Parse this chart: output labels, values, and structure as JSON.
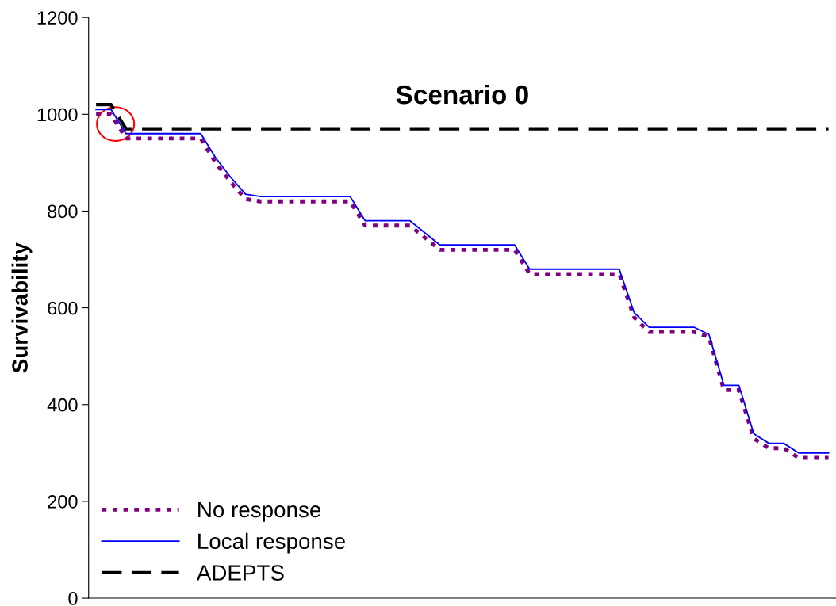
{
  "chart_data": {
    "type": "line",
    "title": "Scenario 0",
    "ylabel": "Survivability",
    "categories": [
      null,
      null,
      null,
      null,
      null,
      null,
      null,
      null,
      null,
      null,
      null,
      null,
      null,
      null,
      null,
      null,
      null,
      null,
      null,
      null,
      null,
      null,
      null,
      null,
      null,
      null,
      null,
      null,
      null,
      null,
      null,
      null,
      null,
      null,
      null,
      null,
      null,
      null,
      null,
      null,
      null,
      null,
      null,
      null,
      null,
      null,
      null,
      null,
      null,
      null
    ],
    "series": [
      {
        "name": "No response",
        "color": "#800080",
        "line_style": "dotted",
        "values": [
          1000,
          1000,
          950,
          950,
          950,
          950,
          950,
          950,
          900,
          860,
          825,
          820,
          820,
          820,
          820,
          820,
          820,
          820,
          770,
          770,
          770,
          770,
          745,
          720,
          720,
          720,
          720,
          720,
          720,
          670,
          670,
          670,
          670,
          670,
          670,
          670,
          580,
          550,
          550,
          550,
          550,
          540,
          430,
          430,
          330,
          310,
          310,
          290,
          290,
          290
        ]
      },
      {
        "name": "Local response",
        "color": "#0000ff",
        "line_style": "solid",
        "values": [
          1010,
          1010,
          960,
          960,
          960,
          960,
          960,
          960,
          910,
          870,
          835,
          830,
          830,
          830,
          830,
          830,
          830,
          830,
          780,
          780,
          780,
          780,
          755,
          730,
          730,
          730,
          730,
          730,
          730,
          680,
          680,
          680,
          680,
          680,
          680,
          680,
          590,
          560,
          560,
          560,
          560,
          545,
          440,
          440,
          340,
          320,
          320,
          300,
          300,
          300
        ]
      },
      {
        "name": "ADEPTS",
        "color": "#000000",
        "line_style": "dashed",
        "values": [
          1020,
          1020,
          970,
          970,
          970,
          970,
          970,
          970,
          970,
          970,
          970,
          970,
          970,
          970,
          970,
          970,
          970,
          970,
          970,
          970,
          970,
          970,
          970,
          970,
          970,
          970,
          970,
          970,
          970,
          970,
          970,
          970,
          970,
          970,
          970,
          970,
          970,
          970,
          970,
          970,
          970,
          970,
          970,
          970,
          970,
          970,
          970,
          970,
          970,
          970
        ]
      }
    ],
    "ylim": [
      0,
      1200
    ],
    "yticks": [
      0,
      200,
      400,
      600,
      800,
      1000,
      1200
    ],
    "grid": false,
    "legend": "bottom left",
    "marker": "none",
    "tick_labels": "y"
  }
}
